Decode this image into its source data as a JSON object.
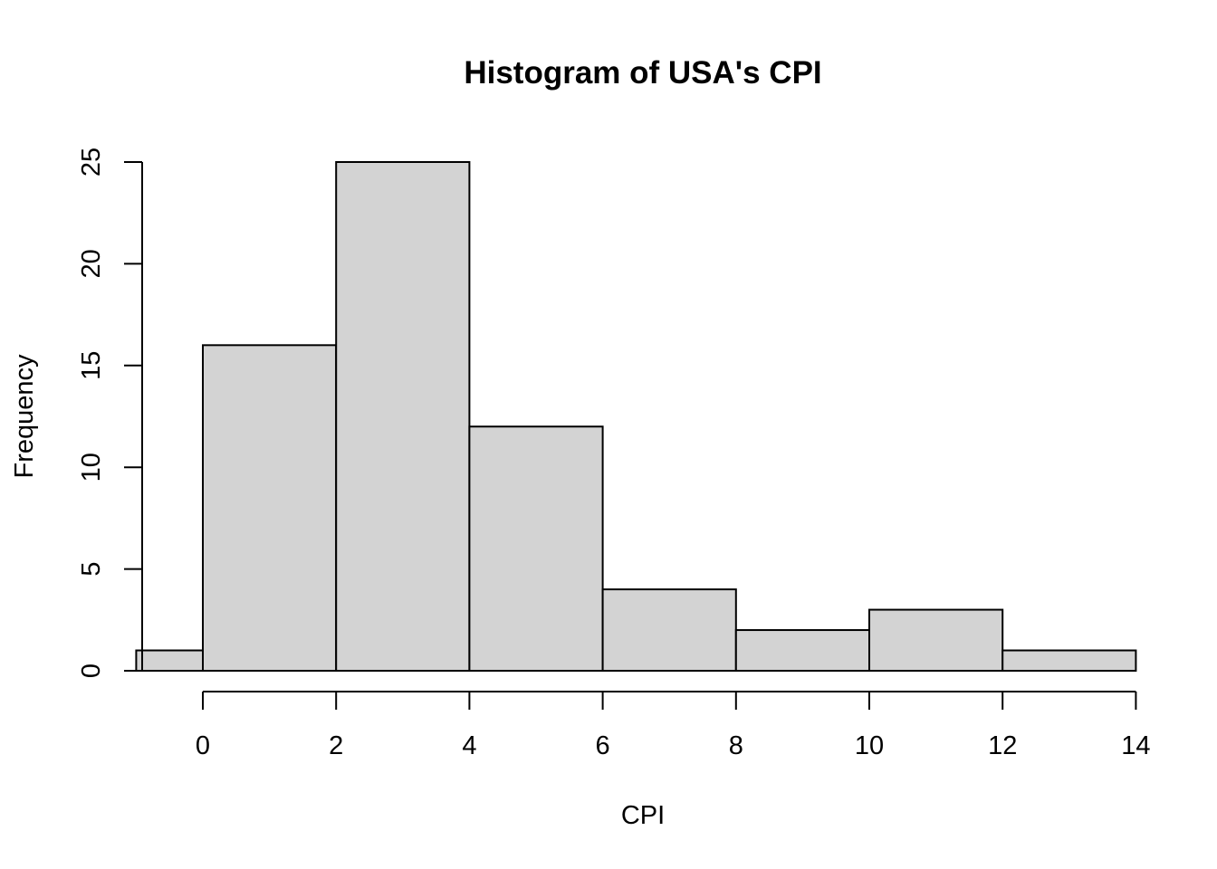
{
  "chart_data": {
    "type": "histogram",
    "title": "Histogram of USA's CPI",
    "xlabel": "CPI",
    "ylabel": "Frequency",
    "bins": [
      {
        "x0": -1,
        "x1": 0,
        "count": 1
      },
      {
        "x0": 0,
        "x1": 2,
        "count": 16
      },
      {
        "x0": 2,
        "x1": 4,
        "count": 25
      },
      {
        "x0": 4,
        "x1": 6,
        "count": 12
      },
      {
        "x0": 6,
        "x1": 8,
        "count": 4
      },
      {
        "x0": 8,
        "x1": 10,
        "count": 2
      },
      {
        "x0": 10,
        "x1": 12,
        "count": 3
      },
      {
        "x0": 12,
        "x1": 14,
        "count": 1
      }
    ],
    "x_ticks": [
      0,
      2,
      4,
      6,
      8,
      10,
      12,
      14
    ],
    "y_ticks": [
      0,
      5,
      10,
      15,
      20,
      25
    ],
    "xlim": [
      -1,
      14
    ],
    "ylim": [
      0,
      25
    ],
    "grid": false,
    "bar_color": "#d3d3d3",
    "border_color": "#000000"
  }
}
